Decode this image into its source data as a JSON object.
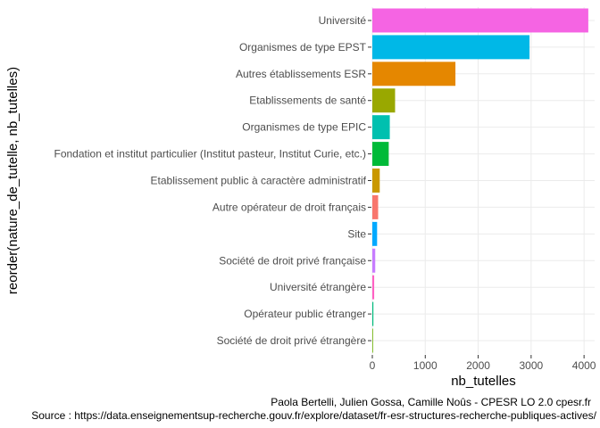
{
  "chart_data": {
    "type": "bar",
    "orientation": "horizontal",
    "xlabel": "nb_tutelles",
    "ylabel": "reorder(nature_de_tutelle, nb_tutelles)",
    "xlim": [
      0,
      4200
    ],
    "x_ticks": [
      0,
      1000,
      2000,
      3000,
      4000
    ],
    "grid": true,
    "legend": "none",
    "categories": [
      "Université",
      "Organismes de type EPST",
      "Autres établissements ESR",
      "Etablissements de santé",
      "Organismes de type EPIC",
      "Fondation et institut particulier (Institut pasteur, Institut Curie, etc.)",
      "Etablissement public à caractère administratif",
      "Autre opérateur de droit français",
      "Site",
      "Société de droit privé française",
      "Université étrangère",
      "Opérateur public étranger",
      "Société de droit privé étrangère"
    ],
    "values": [
      4080,
      2970,
      1570,
      430,
      330,
      310,
      140,
      110,
      90,
      55,
      35,
      20,
      5
    ],
    "colors": [
      "#f564e3",
      "#00b8e7",
      "#e58700",
      "#99a800",
      "#00c0af",
      "#00ba38",
      "#c99800",
      "#f8766d",
      "#00a9ff",
      "#c77cff",
      "#ff61c3",
      "#00bc7d",
      "#6bb100"
    ],
    "caption_lines": [
      "Paola Bertelli, Julien Gossa, Camille Noûs - CPESR LO 2.0 cpesr.fr",
      "Source : https://data.enseignementsup-recherche.gouv.fr/explore/dataset/fr-esr-structures-recherche-publiques-actives/"
    ]
  }
}
